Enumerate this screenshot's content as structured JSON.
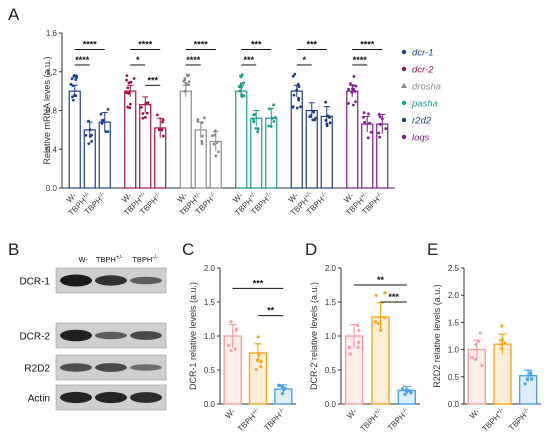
{
  "panel_letters": {
    "A": "A",
    "B": "B",
    "C": "C",
    "D": "D",
    "E": "E"
  },
  "colors": {
    "dcr1": "#1f3f8f",
    "dcr2": "#a0143c",
    "drosha": "#8a8a8a",
    "pasha": "#1a9a8a",
    "r2d2": "#203a80",
    "loqs": "#7a1f8a",
    "wt": "#f4a0a0",
    "het": "#f5a623",
    "ko": "#4aa3df",
    "blot_bg": "#cfcfcf",
    "band": "#1a1a1a"
  },
  "chart_data": [
    {
      "panel": "A",
      "type": "bar",
      "ylabel": "Relative mRNA leves (a.u.)",
      "ylim": [
        0,
        1.6
      ],
      "yticks": [
        "0.0",
        "0.4",
        "0.8",
        "1.2",
        "1.6"
      ],
      "group_tick_labels": [
        "W-",
        "TBPH+/-",
        "TBPH-/-"
      ],
      "legend": {
        "placement": "right",
        "entries": [
          "dcr-1",
          "dcr-2",
          "drosha",
          "pasha",
          "r2d2",
          "loqs"
        ]
      },
      "groups": [
        {
          "name": "dcr-1",
          "values": [
            1.0,
            0.6,
            0.68
          ],
          "sig": [
            {
              "a": 0,
              "b": 1,
              "label": "****",
              "y": 1.27
            },
            {
              "a": 0,
              "b": 2,
              "label": "****",
              "y": 1.43
            }
          ]
        },
        {
          "name": "dcr-2",
          "values": [
            1.0,
            0.86,
            0.62
          ],
          "sig": [
            {
              "a": 0,
              "b": 1,
              "label": "*",
              "y": 1.27
            },
            {
              "a": 1,
              "b": 2,
              "label": "***",
              "y": 1.06
            },
            {
              "a": 0,
              "b": 2,
              "label": "****",
              "y": 1.43
            }
          ]
        },
        {
          "name": "drosha",
          "values": [
            1.0,
            0.6,
            0.48
          ],
          "sig": [
            {
              "a": 0,
              "b": 1,
              "label": "****",
              "y": 1.27
            },
            {
              "a": 0,
              "b": 2,
              "label": "****",
              "y": 1.43
            }
          ]
        },
        {
          "name": "pasha",
          "values": [
            1.0,
            0.72,
            0.72
          ],
          "sig": [
            {
              "a": 0,
              "b": 1,
              "label": "***",
              "y": 1.27
            },
            {
              "a": 0,
              "b": 2,
              "label": "***",
              "y": 1.43
            }
          ]
        },
        {
          "name": "r2d2",
          "values": [
            1.0,
            0.8,
            0.74
          ],
          "sig": [
            {
              "a": 0,
              "b": 1,
              "label": "*",
              "y": 1.27
            },
            {
              "a": 0,
              "b": 2,
              "label": "***",
              "y": 1.43
            }
          ]
        },
        {
          "name": "loqs",
          "values": [
            1.0,
            0.66,
            0.66
          ],
          "sig": [
            {
              "a": 0,
              "b": 1,
              "label": "****",
              "y": 1.27
            },
            {
              "a": 0,
              "b": 2,
              "label": "****",
              "y": 1.43
            }
          ]
        }
      ]
    },
    {
      "panel": "C",
      "type": "bar",
      "ylabel": "DCR-1 relative levels (a.u.)",
      "ylim": [
        0,
        2.0
      ],
      "yticks": [
        "0.0",
        "0.5",
        "1.0",
        "1.5",
        "2.0"
      ],
      "categories": [
        "W-",
        "TBPH+/-",
        "TBPH-/-"
      ],
      "values": [
        1.0,
        0.75,
        0.22
      ],
      "sig": [
        {
          "a": 0,
          "b": 2,
          "label": "***",
          "y": 1.7
        },
        {
          "a": 1,
          "b": 2,
          "label": "**",
          "y": 1.3
        }
      ]
    },
    {
      "panel": "D",
      "type": "bar",
      "ylabel": "DCR-2 relative levels (a.u.)",
      "ylim": [
        0,
        2.0
      ],
      "yticks": [
        "0.0",
        "0.5",
        "1.0",
        "1.5",
        "2.0"
      ],
      "categories": [
        "W-",
        "TBPH+/-",
        "TBPH-/-"
      ],
      "values": [
        1.0,
        1.28,
        0.2
      ],
      "sig": [
        {
          "a": 0,
          "b": 2,
          "label": "**",
          "y": 1.75
        },
        {
          "a": 1,
          "b": 2,
          "label": "***",
          "y": 1.5
        }
      ]
    },
    {
      "panel": "E",
      "type": "bar",
      "ylabel": "R2D2 relative levels (a.u.)",
      "ylim": [
        0,
        2.5
      ],
      "yticks": [
        "0.0",
        "0.5",
        "1.0",
        "1.5",
        "2.0",
        "2.5"
      ],
      "categories": [
        "W-",
        "TBPH+/-",
        "TBPH-/-"
      ],
      "values": [
        1.0,
        1.1,
        0.52
      ],
      "sig": []
    }
  ],
  "blot": {
    "panel": "B",
    "columns": [
      "W-",
      "TBPH+/-",
      "TBPH-/-"
    ],
    "rows": [
      "DCR-1",
      "DCR-2",
      "R2D2",
      "Actin"
    ],
    "intensity": [
      [
        1.0,
        0.8,
        0.45
      ],
      [
        0.95,
        0.45,
        0.6
      ],
      [
        0.55,
        0.6,
        0.3
      ],
      [
        0.9,
        0.9,
        0.85
      ]
    ]
  }
}
